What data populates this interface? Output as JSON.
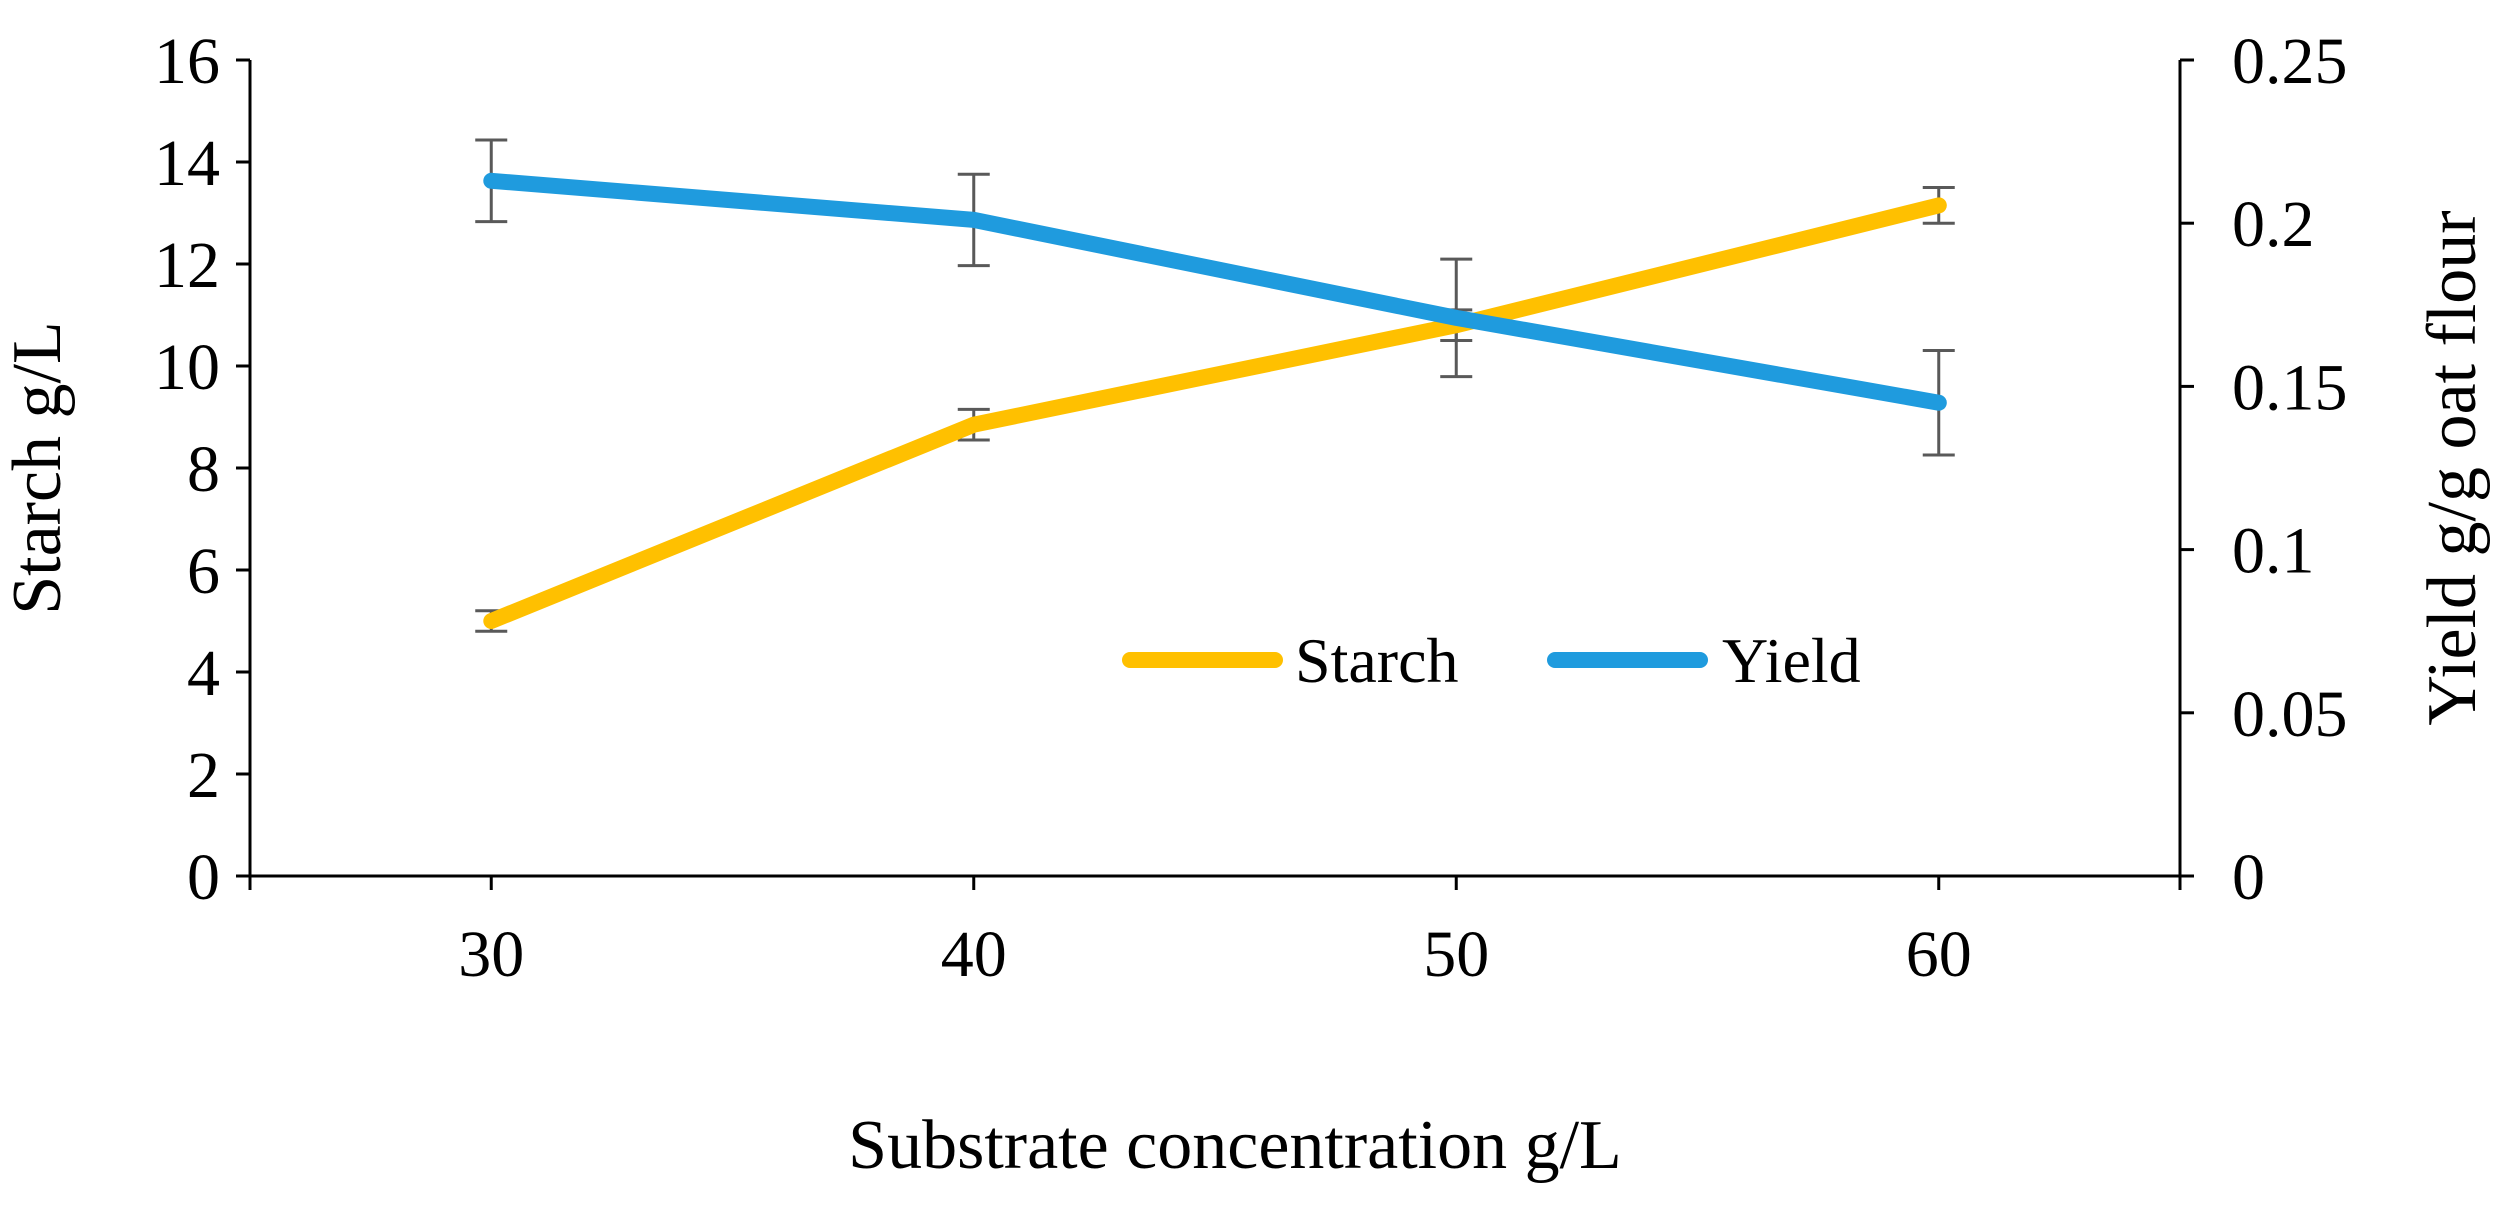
{
  "chart_data": {
    "type": "line",
    "title": "",
    "xlabel": "Substrate concentration  g/L",
    "ylabel": "Starch g/L",
    "y2label": "Yield  g/g oat flour",
    "categories": [
      30,
      40,
      50,
      60
    ],
    "x_tick_labels": [
      "30",
      "40",
      "50",
      "60"
    ],
    "ylim": [
      0,
      16
    ],
    "y_ticks": [
      0,
      2,
      4,
      6,
      8,
      10,
      12,
      14,
      16
    ],
    "y_tick_labels": [
      "0",
      "2",
      "4",
      "6",
      "8",
      "10",
      "12",
      "14",
      "16"
    ],
    "y2lim": [
      0,
      0.25
    ],
    "y2_ticks": [
      0,
      0.05,
      0.1,
      0.15,
      0.2,
      0.25
    ],
    "y2_tick_labels": [
      "0",
      "0.05",
      "0.1",
      "0.15",
      "0.2",
      "0.25"
    ],
    "grid": false,
    "legend_position": "center-right",
    "series": [
      {
        "name": "Starch",
        "axis": "left",
        "color": "#FFC000",
        "values": [
          5.0,
          8.85,
          10.8,
          13.15
        ],
        "error": [
          0.2,
          0.3,
          0.3,
          0.35
        ]
      },
      {
        "name": "Yield",
        "axis": "right",
        "color": "#1F9BDE",
        "values": [
          0.213,
          0.201,
          0.171,
          0.145
        ],
        "error": [
          0.0125,
          0.014,
          0.018,
          0.016
        ]
      }
    ],
    "error_bar_color": "#595959",
    "axis_color": "#000000"
  }
}
